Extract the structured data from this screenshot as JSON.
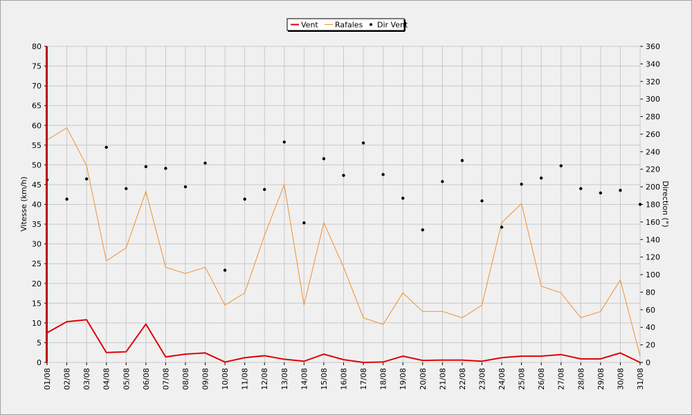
{
  "chart_data": {
    "type": "line",
    "categories": [
      "01/08",
      "02/08",
      "03/08",
      "04/08",
      "05/08",
      "06/08",
      "07/08",
      "08/08",
      "09/08",
      "10/08",
      "11/08",
      "12/08",
      "13/08",
      "14/08",
      "15/08",
      "16/08",
      "17/08",
      "18/08",
      "19/08",
      "20/08",
      "21/08",
      "22/08",
      "23/08",
      "24/08",
      "25/08",
      "26/08",
      "27/08",
      "28/08",
      "29/08",
      "30/08",
      "31/08"
    ],
    "y_label": "Vitesse (km/h)",
    "y2_label": "Direction (°)",
    "ylim": [
      0,
      80
    ],
    "yticks": [
      0,
      5,
      10,
      15,
      20,
      25,
      30,
      35,
      40,
      45,
      50,
      55,
      60,
      65,
      70,
      75,
      80
    ],
    "y2lim": [
      0,
      360
    ],
    "y2ticks": [
      0,
      20,
      40,
      60,
      80,
      100,
      120,
      140,
      160,
      180,
      200,
      220,
      240,
      260,
      280,
      300,
      320,
      340,
      360
    ],
    "grid": true,
    "legend": "top",
    "series": [
      {
        "name": "Vent",
        "color": "#e00000",
        "type": "line",
        "values": [
          7.5,
          10.3,
          10.8,
          2.5,
          2.7,
          9.7,
          1.4,
          2.1,
          2.4,
          0.1,
          1.2,
          1.7,
          0.8,
          0.3,
          2.1,
          0.7,
          0,
          0.1,
          1.6,
          0.5,
          0.6,
          0.6,
          0.3,
          1.2,
          1.6,
          1.6,
          2.0,
          0.9,
          0.9,
          2.4,
          0
        ]
      },
      {
        "name": "Rafales",
        "color": "#f09030",
        "type": "line",
        "values": [
          56.3,
          59.4,
          49.8,
          25.7,
          29.0,
          43.3,
          24.1,
          22.5,
          24.1,
          14.5,
          17.6,
          32.2,
          45.0,
          14.5,
          35.4,
          24.1,
          11.3,
          9.6,
          17.6,
          12.9,
          12.9,
          11.3,
          14.5,
          35.4,
          40.2,
          19.3,
          17.6,
          11.3,
          12.9,
          20.9,
          1.6
        ]
      },
      {
        "name": "Dir Vent",
        "color": "#000000",
        "type": "scatter",
        "axis": "y2",
        "values": [
          208,
          186,
          209,
          245,
          198,
          223,
          221,
          200,
          227,
          105,
          186,
          197,
          251,
          159,
          232,
          213,
          250,
          214,
          187,
          151,
          206,
          230,
          184,
          154,
          203,
          210,
          224,
          198,
          193,
          196,
          180
        ]
      }
    ]
  }
}
